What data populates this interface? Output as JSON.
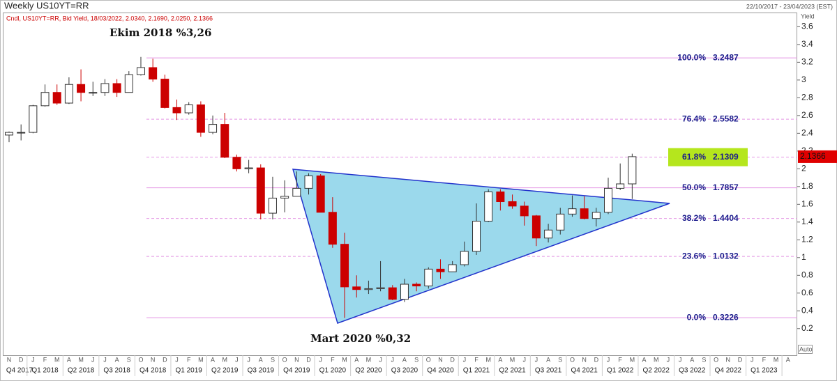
{
  "chart_data": {
    "type": "candlestick",
    "title": "Weekly US10YT=RR",
    "date_range": "22/10/2017 - 23/04/2023 (EST)",
    "info": "Cndl, US10YT=RR, Bid Yield, 18/03/2022, 2.0340, 2.1690, 2.0250, 2.1366",
    "y_axis_label": "Yield",
    "auto_label": "Auto",
    "annotations": [
      "Ekim 2018 %3,26",
      "Mart 2020 %0,32"
    ],
    "up_color": "#ffffff",
    "down_color": "#cc0000",
    "last_price_color": "#e00000",
    "fib_color": "#e495e4",
    "highlight_color": "#b5e61d",
    "highlight_level": 2,
    "ylim": [
      -0.1,
      3.76
    ],
    "yticks": [
      0.2,
      0.4,
      0.6,
      0.8,
      1,
      1.2,
      1.4,
      1.6,
      1.8,
      2,
      2.2,
      2.4,
      2.6,
      2.8,
      3,
      3.2,
      3.4,
      3.6
    ],
    "months": [
      "N",
      "D",
      "J",
      "F",
      "M",
      "A",
      "M",
      "J",
      "J",
      "A",
      "S",
      "O",
      "N",
      "D",
      "J",
      "F",
      "M",
      "A",
      "M",
      "J",
      "J",
      "A",
      "S",
      "O",
      "N",
      "D",
      "J",
      "F",
      "M",
      "A",
      "M",
      "J",
      "J",
      "A",
      "S",
      "O",
      "N",
      "D",
      "J",
      "F",
      "M",
      "A",
      "M",
      "J",
      "J",
      "A",
      "S",
      "O",
      "N",
      "D",
      "J",
      "F",
      "M",
      "A",
      "M",
      "J",
      "J",
      "A",
      "S",
      "O",
      "N",
      "D",
      "J",
      "F",
      "M",
      "A"
    ],
    "quarters": [
      "Q4 2017",
      "Q1 2018",
      "Q2 2018",
      "Q3 2018",
      "Q4 2018",
      "Q1 2019",
      "Q2 2019",
      "Q3 2019",
      "Q4 2019",
      "Q1 2020",
      "Q2 2020",
      "Q3 2020",
      "Q4 2020",
      "Q1 2021",
      "Q2 2021",
      "Q3 2021",
      "Q4 2021",
      "Q1 2022",
      "Q2 2022",
      "Q3 2022",
      "Q4 2022",
      "Q1 2023"
    ],
    "fib_levels": [
      {
        "label": "100.0%",
        "value": 3.2487,
        "style": "solid"
      },
      {
        "label": "76.4%",
        "value": 2.5582,
        "style": "dashed"
      },
      {
        "label": "61.8%",
        "value": 2.1309,
        "style": "dashed"
      },
      {
        "label": "50.0%",
        "value": 1.7857,
        "style": "solid"
      },
      {
        "label": "38.2%",
        "value": 1.4404,
        "style": "dashed"
      },
      {
        "label": "23.6%",
        "value": 1.0132,
        "style": "dashed"
      },
      {
        "label": "0.0%",
        "value": 0.3226,
        "style": "solid"
      }
    ],
    "x": [
      "2017-11",
      "2017-12",
      "2018-01",
      "2018-02",
      "2018-03",
      "2018-04",
      "2018-05",
      "2018-06",
      "2018-07",
      "2018-08",
      "2018-09",
      "2018-10",
      "2018-11",
      "2018-12",
      "2019-01",
      "2019-02",
      "2019-03",
      "2019-04",
      "2019-05",
      "2019-06",
      "2019-07",
      "2019-08",
      "2019-09",
      "2019-10",
      "2019-11",
      "2019-12",
      "2020-01",
      "2020-02",
      "2020-03",
      "2020-04",
      "2020-05",
      "2020-06",
      "2020-07",
      "2020-08",
      "2020-09",
      "2020-10",
      "2020-11",
      "2020-12",
      "2021-01",
      "2021-02",
      "2021-03",
      "2021-04",
      "2021-05",
      "2021-06",
      "2021-07",
      "2021-08",
      "2021-09",
      "2021-10",
      "2021-11",
      "2021-12",
      "2022-01",
      "2022-02",
      "2022-03"
    ],
    "open": [
      2.38,
      2.41,
      2.41,
      2.71,
      2.86,
      2.74,
      2.95,
      2.86,
      2.86,
      2.96,
      2.86,
      3.06,
      3.14,
      3.01,
      2.69,
      2.63,
      2.72,
      2.41,
      2.5,
      2.13,
      2.0,
      2.01,
      1.5,
      1.67,
      1.69,
      1.78,
      1.92,
      1.51,
      1.15,
      0.67,
      0.64,
      0.65,
      0.66,
      0.53,
      0.7,
      0.68,
      0.87,
      0.84,
      0.92,
      1.07,
      1.41,
      1.74,
      1.63,
      1.58,
      1.47,
      1.22,
      1.31,
      1.49,
      1.55,
      1.44,
      1.51,
      1.78,
      1.83
    ],
    "high": [
      2.42,
      2.5,
      2.72,
      2.95,
      2.95,
      3.03,
      3.12,
      2.98,
      3.01,
      3.01,
      3.1,
      3.26,
      3.24,
      3.06,
      2.78,
      2.75,
      2.76,
      2.6,
      2.63,
      2.16,
      2.1,
      2.05,
      1.91,
      1.87,
      1.97,
      1.95,
      1.94,
      1.68,
      1.28,
      0.8,
      0.74,
      0.96,
      0.69,
      0.76,
      0.72,
      0.89,
      0.98,
      0.96,
      1.18,
      1.61,
      1.77,
      1.77,
      1.71,
      1.63,
      1.48,
      1.38,
      1.56,
      1.7,
      1.69,
      1.56,
      1.9,
      2.06,
      2.17
    ],
    "low": [
      2.3,
      2.32,
      2.4,
      2.7,
      2.72,
      2.73,
      2.76,
      2.82,
      2.82,
      2.81,
      2.86,
      3.05,
      2.98,
      2.68,
      2.55,
      2.61,
      2.36,
      2.39,
      2.12,
      1.97,
      1.95,
      1.43,
      1.43,
      1.51,
      1.69,
      1.71,
      1.51,
      1.11,
      0.32,
      0.55,
      0.59,
      0.62,
      0.52,
      0.5,
      0.62,
      0.65,
      0.76,
      0.84,
      0.9,
      1.03,
      1.4,
      1.53,
      1.55,
      1.36,
      1.13,
      1.17,
      1.26,
      1.46,
      1.43,
      1.35,
      1.49,
      1.76,
      1.66
    ],
    "close": [
      2.41,
      2.41,
      2.71,
      2.86,
      2.74,
      2.95,
      2.86,
      2.86,
      2.96,
      2.86,
      3.06,
      3.14,
      3.01,
      2.69,
      2.63,
      2.72,
      2.41,
      2.5,
      2.13,
      2.0,
      2.01,
      1.5,
      1.67,
      1.69,
      1.78,
      1.92,
      1.51,
      1.15,
      0.67,
      0.64,
      0.65,
      0.66,
      0.53,
      0.7,
      0.68,
      0.87,
      0.84,
      0.92,
      1.07,
      1.41,
      1.74,
      1.63,
      1.58,
      1.47,
      1.22,
      1.31,
      1.49,
      1.55,
      1.44,
      1.51,
      1.78,
      1.83,
      2.1366
    ]
  }
}
